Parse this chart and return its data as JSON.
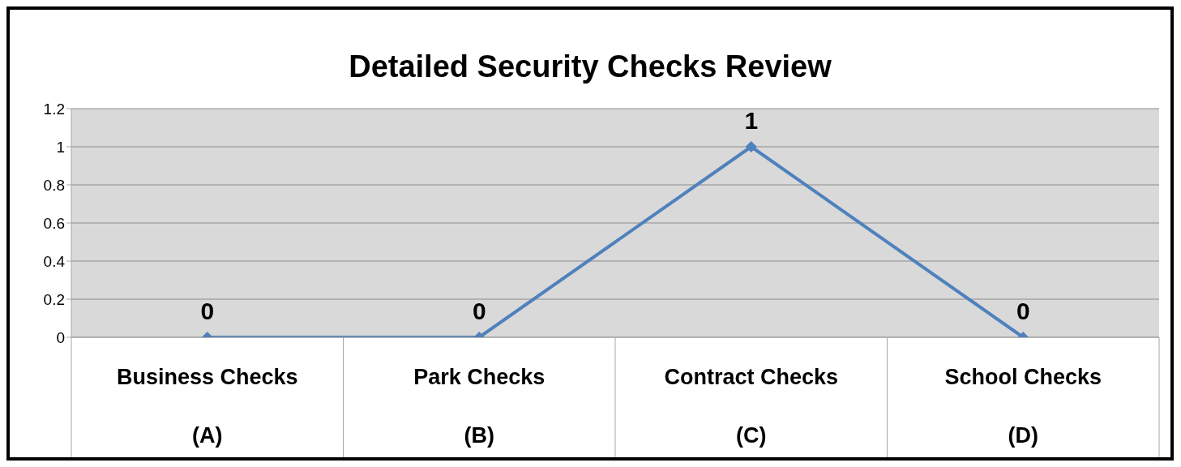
{
  "chart_data": {
    "type": "line",
    "title": "Detailed Security Checks Review",
    "categories": [
      "Business Checks\n(A)",
      "Park Checks\n(B)",
      "Contract Checks\n(C)",
      "School Checks\n(D)"
    ],
    "series": [
      {
        "color": "#4f81bd",
        "values": [
          0,
          0,
          1,
          0
        ]
      }
    ],
    "ylim": [
      0,
      1.2
    ],
    "yticks": [
      0,
      0.2,
      0.4,
      0.6,
      0.8,
      1,
      1.2
    ],
    "grid": "y",
    "marker": "diamond",
    "data_labels": true
  }
}
